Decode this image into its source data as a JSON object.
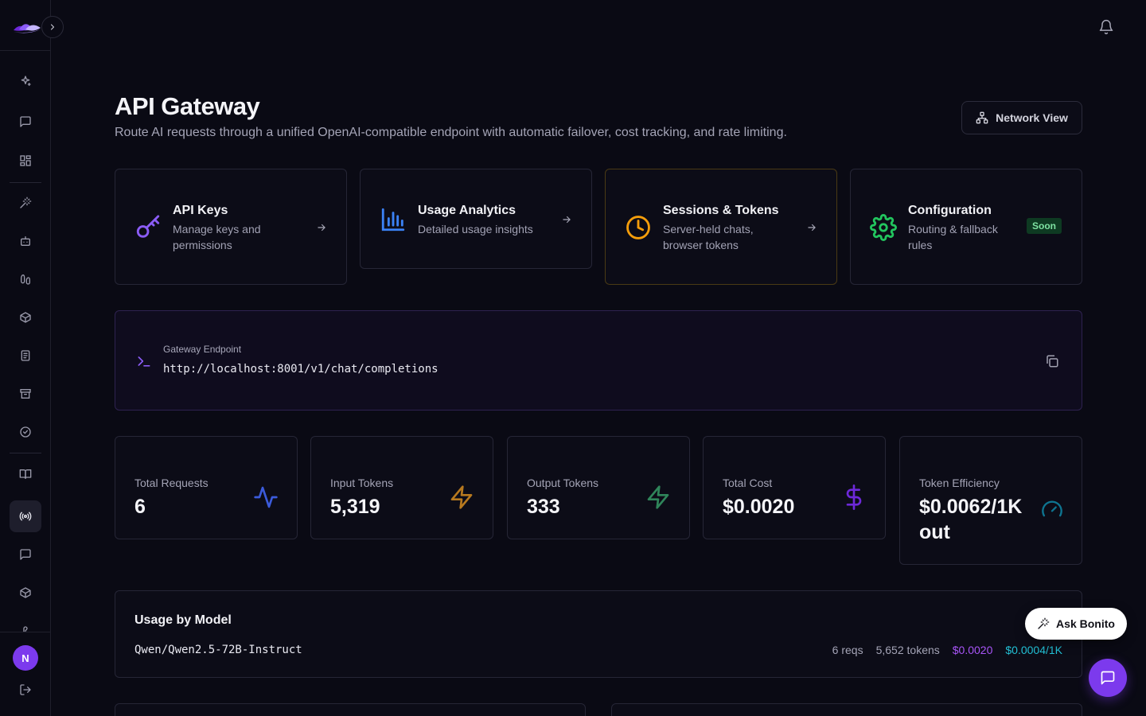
{
  "header": {
    "title": "API Gateway",
    "subtitle": "Route AI requests through a unified OpenAI-compatible endpoint with automatic failover, cost tracking, and rate limiting.",
    "network_view_label": "Network View"
  },
  "nav_cards": [
    {
      "title": "API Keys",
      "desc": "Manage keys and permissions",
      "icon": "key-icon",
      "color": "#8b5cf6"
    },
    {
      "title": "Usage Analytics",
      "desc": "Detailed usage insights",
      "icon": "bar-chart-icon",
      "color": "#3b82f6"
    },
    {
      "title": "Sessions & Tokens",
      "desc": "Server-held chats, browser tokens",
      "icon": "clock-icon",
      "color": "#f59e0b"
    },
    {
      "title": "Configuration",
      "desc": "Routing & fallback rules",
      "icon": "gear-icon",
      "color": "#22c55e",
      "badge": "Soon"
    }
  ],
  "endpoint": {
    "label": "Gateway Endpoint",
    "url": "http://localhost:8001/v1/chat/completions"
  },
  "stats": [
    {
      "label": "Total Requests",
      "value": "6",
      "icon": "activity-icon",
      "color": "#3b5bdb"
    },
    {
      "label": "Input Tokens",
      "value": "5,319",
      "icon": "zap-icon",
      "color": "#b7791f"
    },
    {
      "label": "Output Tokens",
      "value": "333",
      "icon": "zap-icon",
      "color": "#2f855a"
    },
    {
      "label": "Total Cost",
      "value": "$0.0020",
      "icon": "dollar-icon",
      "color": "#6d28d9"
    },
    {
      "label": "Token Efficiency",
      "value": "$0.0062/1K out",
      "icon": "gauge-icon",
      "color": "#0e7490"
    }
  ],
  "usage": {
    "title": "Usage by Model",
    "rows": [
      {
        "model": "Qwen/Qwen2.5-72B-Instruct",
        "reqs": "6 reqs",
        "tokens": "5,652 tokens",
        "cost": "$0.0020",
        "rate": "$0.0004/1K"
      }
    ]
  },
  "floating": {
    "ask_label": "Ask Bonito"
  },
  "user": {
    "avatar_initial": "N"
  },
  "colors": {
    "accent": "#7c3aed",
    "background": "#0a0a14"
  }
}
